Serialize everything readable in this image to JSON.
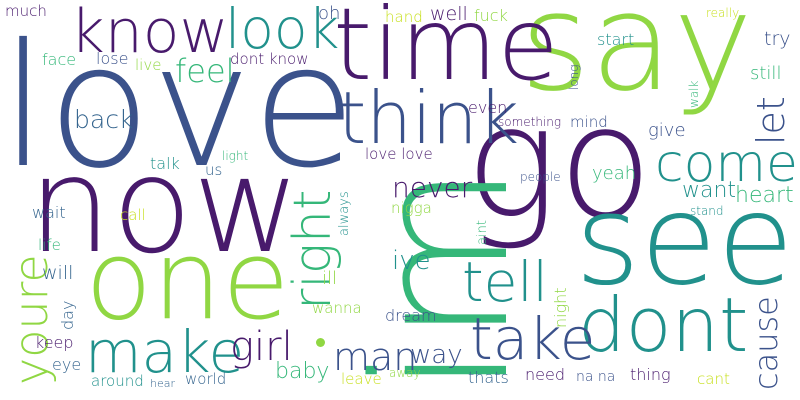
{
  "palette": {
    "viridis_purple": "#481A6C",
    "viridis_indigo": "#3B528B",
    "viridis_blue": "#33638D",
    "viridis_teal": "#21918C",
    "viridis_green": "#35B779",
    "viridis_lime": "#90D743",
    "viridis_yellow": "#C8E020"
  },
  "words": [
    "love",
    "say",
    "now",
    "time",
    "go",
    "see",
    "one",
    "know",
    "look",
    "think",
    "dont",
    "im",
    "come",
    "make",
    "take",
    "tell",
    "right",
    "let",
    "youre",
    "girl",
    "man",
    "feel",
    "never",
    "back",
    "cause",
    "heart",
    "way",
    "want",
    "ive",
    "baby",
    "give",
    "yeah",
    "much",
    "face",
    "lose",
    "live",
    "dont know",
    "oh",
    "hand",
    "well",
    "fuck",
    "long",
    "start",
    "really",
    "try",
    "still",
    "walk",
    "even",
    "something",
    "mind",
    "love love",
    "light",
    "us",
    "talk",
    "people",
    "always",
    "nigga",
    "stand",
    "wait",
    "call",
    "life",
    "will",
    "ill",
    "aint",
    "day",
    "wanna",
    "dream",
    "night",
    "keep",
    "eye",
    "around",
    "hear",
    "world",
    "leave",
    "away",
    "thats",
    "need",
    "na na",
    "thing",
    "cant"
  ]
}
